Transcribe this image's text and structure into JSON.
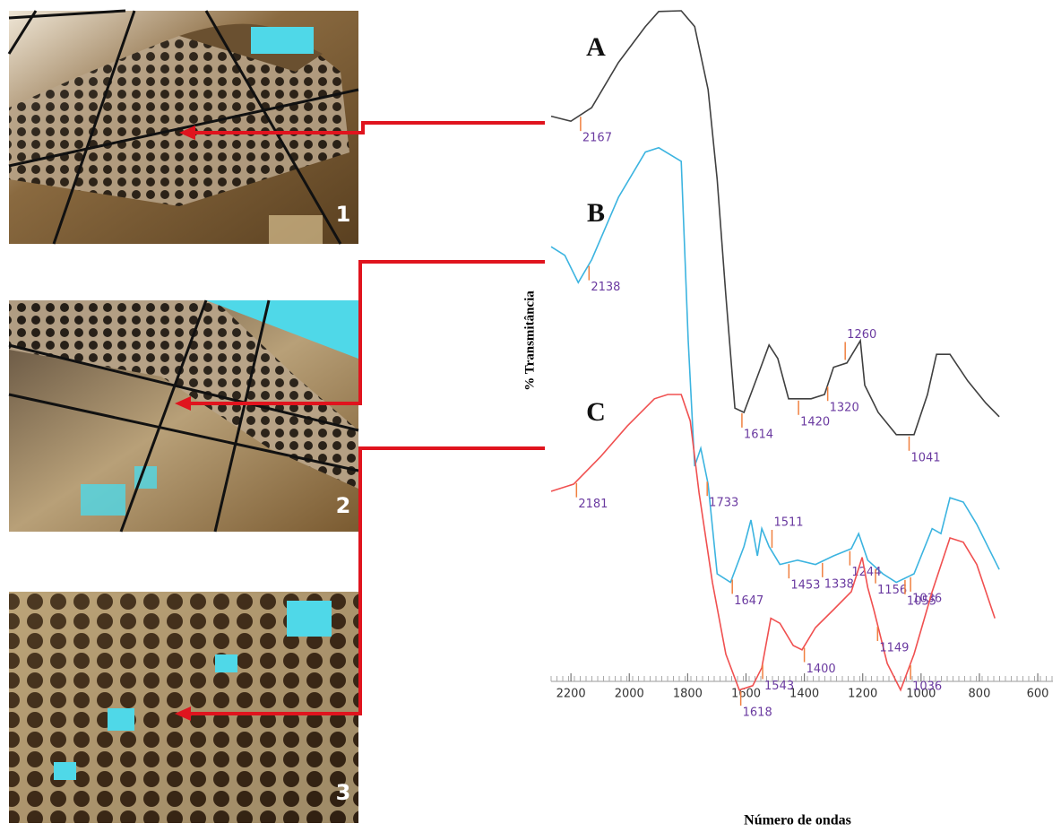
{
  "chart_data": {
    "type": "line",
    "xlabel": "Número de ondas",
    "ylabel": "% Transmitância",
    "xlim": [
      2268,
      548
    ],
    "ylim": [
      0,
      100
    ],
    "xticks": [
      2200,
      2000,
      1800,
      1600,
      1400,
      1200,
      1000,
      800,
      600
    ],
    "series": [
      {
        "name": "A",
        "color": "#404040",
        "x": [
          2268,
          2200,
          2129,
          2037,
          1945,
          1899,
          1822,
          1776,
          1730,
          1699,
          1669,
          1638,
          1607,
          1561,
          1521,
          1491,
          1454,
          1423,
          1377,
          1331,
          1300,
          1254,
          1208,
          1193,
          1147,
          1085,
          1024,
          978,
          947,
          901,
          840,
          778,
          732
        ],
        "values": [
          83.8,
          83.1,
          85,
          91.3,
          96.3,
          98.4,
          98.5,
          96.3,
          87.5,
          75,
          58.8,
          43.1,
          42.5,
          47.5,
          51.9,
          50,
          44.4,
          44.4,
          44.4,
          45,
          48.8,
          49.4,
          52.5,
          46.3,
          42.5,
          39.4,
          39.4,
          45,
          50.6,
          50.6,
          46.9,
          43.8,
          41.9
        ],
        "peaks": [
          2167,
          1614,
          1420,
          1320,
          1260,
          1041
        ]
      },
      {
        "name": "B",
        "color": "#3cb4e0",
        "x": [
          2268,
          2221,
          2175,
          2129,
          2037,
          1945,
          1899,
          1822,
          1798,
          1776,
          1755,
          1730,
          1699,
          1653,
          1607,
          1583,
          1561,
          1546,
          1521,
          1484,
          1423,
          1362,
          1300,
          1239,
          1214,
          1183,
          1131,
          1085,
          1024,
          962,
          932,
          901,
          855,
          809,
          732
        ],
        "values": [
          65.6,
          64.4,
          60.6,
          63.8,
          72.5,
          78.8,
          79.4,
          77.5,
          52.5,
          35,
          37.5,
          32.5,
          20,
          18.8,
          23.8,
          27.5,
          22.5,
          26.3,
          23.8,
          21.3,
          21.9,
          21.3,
          22.5,
          23.5,
          25.6,
          21.9,
          20,
          18.8,
          20,
          26.3,
          25.6,
          30.6,
          30,
          26.9,
          20.6
        ],
        "peaks": [
          2138,
          1733,
          1647,
          1511,
          1453,
          1338,
          1244,
          1156,
          1055,
          1036
        ]
      },
      {
        "name": "C",
        "color": "#f05050",
        "x": [
          2268,
          2191,
          2099,
          2007,
          1914,
          1868,
          1822,
          1791,
          1761,
          1715,
          1669,
          1623,
          1577,
          1546,
          1515,
          1484,
          1438,
          1408,
          1362,
          1300,
          1239,
          1202,
          1183,
          1162,
          1116,
          1070,
          1024,
          962,
          901,
          855,
          809,
          747
        ],
        "values": [
          31.5,
          32.5,
          36.3,
          40.6,
          44.4,
          45,
          45,
          41.3,
          31.3,
          18.8,
          8.8,
          3.8,
          4.4,
          6.9,
          13.8,
          13.1,
          10,
          9.4,
          12.5,
          15,
          17.5,
          22.3,
          18.1,
          15,
          7.5,
          3.8,
          8.8,
          17.5,
          25,
          24.4,
          21.3,
          13.8
        ],
        "peaks": [
          2181,
          1618,
          1543,
          1400,
          1149,
          1036
        ]
      }
    ]
  },
  "panels": [
    "1",
    "2",
    "3"
  ]
}
